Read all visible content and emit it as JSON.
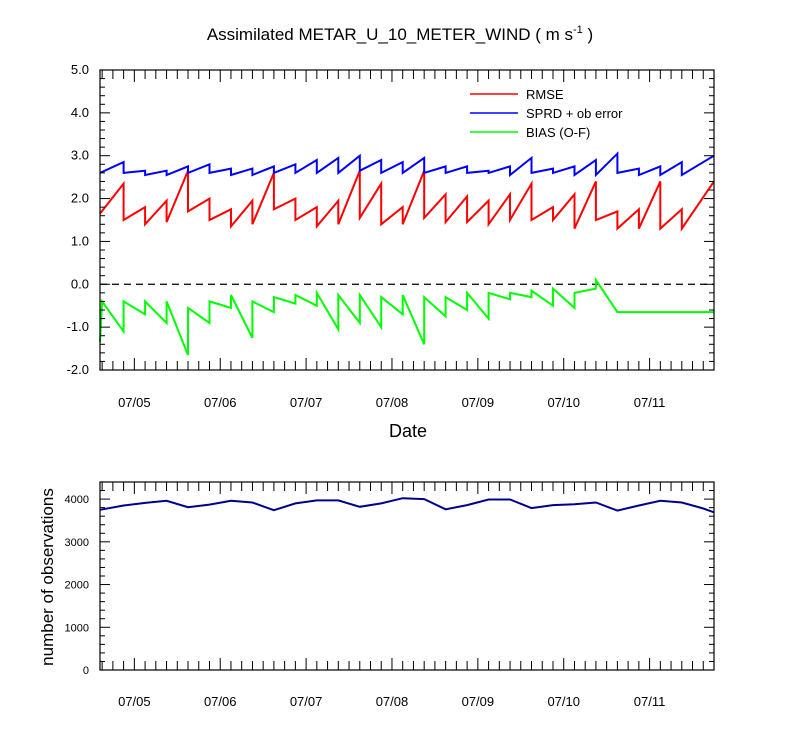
{
  "chart_data": [
    {
      "type": "line",
      "title": "Assimilated METAR_U_10_METER_WIND ( m s",
      "title_sup": "-1",
      "title_tail": " )",
      "xlabel": "Date",
      "ylabel": "",
      "xlim": [
        4.6,
        11.75
      ],
      "ylim": [
        -2.0,
        5.0
      ],
      "yticks": [
        -2.0,
        -1.0,
        0.0,
        1.0,
        2.0,
        3.0,
        4.0,
        5.0
      ],
      "ytick_labels": [
        "-2.0",
        "-1.0",
        "0.0",
        "1.0",
        "2.0",
        "3.0",
        "4.0",
        "5.0"
      ],
      "xticks": [
        5,
        6,
        7,
        8,
        9,
        10,
        11
      ],
      "xtick_labels": [
        "07/05",
        "07/06",
        "07/07",
        "07/08",
        "07/09",
        "07/10",
        "07/11"
      ],
      "zero_line": true,
      "grid": false,
      "legend_position": "top-right",
      "series": [
        {
          "name": "RMSE",
          "color": "#ff0000",
          "x": [
            4.6,
            4.875,
            4.875,
            5.125,
            5.125,
            5.375,
            5.375,
            5.625,
            5.625,
            5.875,
            5.875,
            6.125,
            6.125,
            6.375,
            6.375,
            6.625,
            6.625,
            6.875,
            6.875,
            7.125,
            7.125,
            7.375,
            7.375,
            7.625,
            7.625,
            7.875,
            7.875,
            8.125,
            8.125,
            8.375,
            8.375,
            8.625,
            8.625,
            8.875,
            8.875,
            9.125,
            9.125,
            9.375,
            9.375,
            9.625,
            9.625,
            9.875,
            9.875,
            10.125,
            10.125,
            10.375,
            10.375,
            10.625,
            10.625,
            10.875,
            10.875,
            11.125,
            11.125,
            11.375,
            11.375,
            11.75
          ],
          "y": [
            1.65,
            2.35,
            1.5,
            1.8,
            1.4,
            1.95,
            1.45,
            2.65,
            1.7,
            2.0,
            1.5,
            1.75,
            1.35,
            1.95,
            1.4,
            2.6,
            1.75,
            2.0,
            1.5,
            1.8,
            1.35,
            1.95,
            1.4,
            2.65,
            1.55,
            2.35,
            1.4,
            1.8,
            1.4,
            2.65,
            1.55,
            2.1,
            1.45,
            2.05,
            1.45,
            1.95,
            1.4,
            2.1,
            1.5,
            2.35,
            1.5,
            1.8,
            1.5,
            2.1,
            1.3,
            2.4,
            1.5,
            1.7,
            1.3,
            1.75,
            1.3,
            2.4,
            1.3,
            1.75,
            1.3,
            2.4
          ]
        },
        {
          "name": "SPRD + ob error",
          "color": "#0000ff",
          "x": [
            4.6,
            4.875,
            4.875,
            5.125,
            5.125,
            5.375,
            5.375,
            5.625,
            5.625,
            5.875,
            5.875,
            6.125,
            6.125,
            6.375,
            6.375,
            6.625,
            6.625,
            6.875,
            6.875,
            7.125,
            7.125,
            7.375,
            7.375,
            7.625,
            7.625,
            7.875,
            7.875,
            8.125,
            8.125,
            8.375,
            8.375,
            8.625,
            8.625,
            8.875,
            8.875,
            9.125,
            9.125,
            9.375,
            9.375,
            9.625,
            9.625,
            9.875,
            9.875,
            10.125,
            10.125,
            10.375,
            10.375,
            10.625,
            10.625,
            10.875,
            10.875,
            11.125,
            11.125,
            11.375,
            11.375,
            11.75
          ],
          "y": [
            2.6,
            2.85,
            2.6,
            2.65,
            2.55,
            2.65,
            2.55,
            2.75,
            2.6,
            2.8,
            2.6,
            2.7,
            2.55,
            2.7,
            2.55,
            2.75,
            2.6,
            2.8,
            2.6,
            2.9,
            2.6,
            2.95,
            2.6,
            3.0,
            2.65,
            2.9,
            2.6,
            2.85,
            2.6,
            2.95,
            2.6,
            2.75,
            2.6,
            2.75,
            2.6,
            2.65,
            2.6,
            2.75,
            2.55,
            2.95,
            2.6,
            2.7,
            2.6,
            2.75,
            2.55,
            2.9,
            2.55,
            3.05,
            2.6,
            2.7,
            2.55,
            2.75,
            2.55,
            2.85,
            2.55,
            3.0
          ]
        },
        {
          "name": "BIAS (O-F)",
          "color": "#00ff00",
          "x": [
            4.6,
            4.625,
            4.875,
            4.875,
            5.125,
            5.125,
            5.375,
            5.375,
            5.625,
            5.625,
            5.875,
            5.875,
            6.125,
            6.125,
            6.375,
            6.375,
            6.625,
            6.625,
            6.875,
            6.875,
            7.125,
            7.125,
            7.375,
            7.375,
            7.625,
            7.625,
            7.875,
            7.875,
            8.125,
            8.125,
            8.375,
            8.375,
            8.625,
            8.625,
            8.875,
            8.875,
            9.125,
            9.125,
            9.375,
            9.375,
            9.625,
            9.625,
            9.875,
            9.875,
            10.125,
            10.125,
            10.375,
            10.375,
            10.625,
            10.625,
            10.875,
            10.875,
            11.125,
            11.125,
            11.375,
            11.5,
            11.75
          ],
          "y": [
            -1.35,
            -0.4,
            -1.1,
            -0.4,
            -0.7,
            -0.4,
            -0.9,
            -0.4,
            -1.65,
            -0.55,
            -0.9,
            -0.4,
            -0.55,
            -0.25,
            -1.25,
            -0.4,
            -0.65,
            -0.3,
            -0.45,
            -0.25,
            -0.5,
            -0.2,
            -1.05,
            -0.25,
            -0.9,
            -0.25,
            -1.0,
            -0.3,
            -0.7,
            -0.25,
            -1.4,
            -0.3,
            -0.75,
            -0.3,
            -0.6,
            -0.2,
            -0.8,
            -0.2,
            -0.35,
            -0.2,
            -0.3,
            -0.15,
            -0.5,
            -0.1,
            -0.55,
            -0.2,
            -0.1,
            0.1,
            -0.65,
            -0.65,
            -0.65,
            -0.65,
            -0.65,
            -0.65,
            -0.65,
            -0.65,
            -0.65
          ]
        }
      ],
      "zero_line_style": "dashed"
    },
    {
      "type": "line",
      "title": "",
      "xlabel": "",
      "ylabel": "number of observations",
      "xlim": [
        4.6,
        11.75
      ],
      "ylim": [
        0,
        4400
      ],
      "yticks": [
        0,
        1000,
        2000,
        3000,
        4000
      ],
      "ytick_labels": [
        "0",
        "1000",
        "2000",
        "3000",
        "4000"
      ],
      "xticks": [
        5,
        6,
        7,
        8,
        9,
        10,
        11
      ],
      "xtick_labels": [
        "07/05",
        "07/06",
        "07/07",
        "07/08",
        "07/09",
        "07/10",
        "07/11"
      ],
      "grid": false,
      "series": [
        {
          "color": "#00008b",
          "x": [
            4.6,
            4.875,
            5.125,
            5.375,
            5.625,
            5.875,
            6.125,
            6.375,
            6.625,
            6.875,
            7.125,
            7.375,
            7.625,
            7.875,
            8.125,
            8.375,
            8.625,
            8.875,
            9.125,
            9.375,
            9.625,
            9.875,
            10.125,
            10.375,
            10.625,
            10.875,
            11.125,
            11.375,
            11.625,
            11.75
          ],
          "y": [
            3750,
            3850,
            3910,
            3960,
            3810,
            3870,
            3960,
            3920,
            3740,
            3900,
            3970,
            3970,
            3820,
            3900,
            4020,
            4000,
            3760,
            3860,
            3990,
            3990,
            3790,
            3860,
            3880,
            3920,
            3730,
            3850,
            3960,
            3920,
            3780,
            3690
          ]
        }
      ]
    }
  ]
}
